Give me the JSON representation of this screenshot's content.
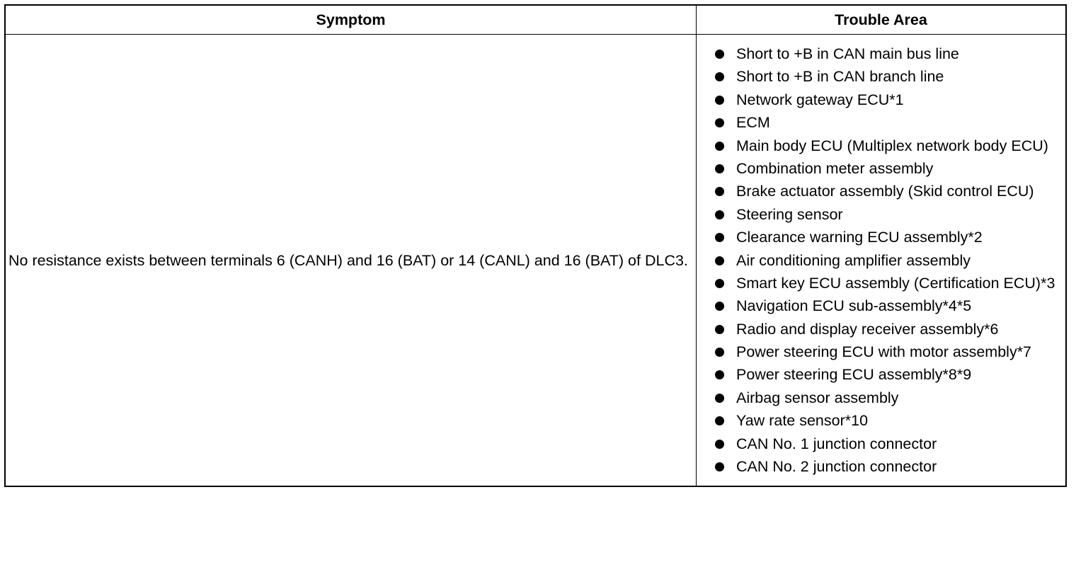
{
  "table": {
    "headers": [
      "Symptom",
      "Trouble Area"
    ],
    "rows": [
      {
        "symptom": "No resistance exists between terminals 6 (CANH) and 16 (BAT) or 14 (CANL) and 16 (BAT) of DLC3.",
        "trouble_area": [
          "Short to +B in CAN main bus line",
          "Short to +B in CAN branch line",
          "Network gateway ECU*1",
          "ECM",
          "Main body ECU (Multiplex network body ECU)",
          "Combination meter assembly",
          "Brake actuator assembly (Skid control ECU)",
          "Steering sensor",
          "Clearance warning ECU assembly*2",
          "Air conditioning amplifier assembly",
          "Smart key ECU assembly (Certification ECU)*3",
          "Navigation ECU sub-assembly*4*5",
          "Radio and display receiver assembly*6",
          "Power steering ECU with motor assembly*7",
          "Power steering ECU assembly*8*9",
          "Airbag sensor assembly",
          "Yaw rate sensor*10",
          "CAN No. 1 junction connector",
          "CAN No. 2 junction connector"
        ]
      }
    ]
  }
}
